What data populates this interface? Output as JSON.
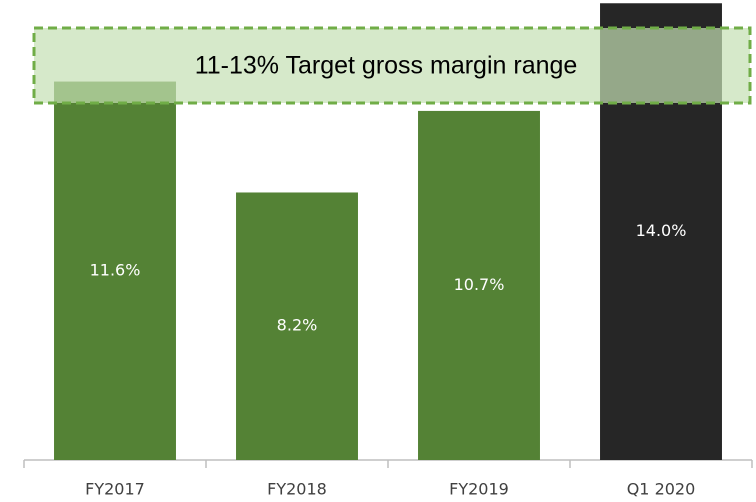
{
  "chart_data": {
    "type": "bar",
    "annotation": "11-13% Target gross margin range",
    "categories": [
      "FY2017",
      "FY2018",
      "FY2019",
      "Q1 2020"
    ],
    "values": [
      11.6,
      8.2,
      10.7,
      14.0
    ],
    "value_labels": [
      "11.6%",
      "8.2%",
      "10.7%",
      "14.0%"
    ],
    "colors": [
      "#548235",
      "#548235",
      "#548235",
      "#262626"
    ],
    "ylim": [
      0,
      14.1
    ]
  }
}
